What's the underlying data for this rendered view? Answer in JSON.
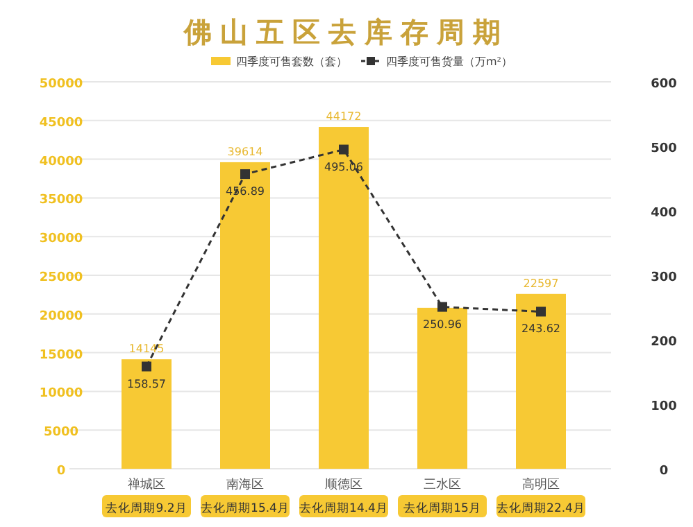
{
  "chart_data": {
    "type": "bar",
    "title": "佛山五区去库存周期",
    "categories": [
      "禅城区",
      "南海区",
      "顺德区",
      "三水区",
      "高明区"
    ],
    "series": [
      {
        "name": "四季度可售套数（套）",
        "color": "#f7c934",
        "values": [
          14145,
          39614,
          44172,
          20800,
          22597
        ],
        "value_labels": [
          "14145",
          "39614",
          "44172",
          null,
          "22597"
        ]
      },
      {
        "name": "四季度可售货量（万m²）",
        "type": "line",
        "axis": "y2",
        "color": "#333333",
        "marker": "square",
        "line_style": "dashed",
        "values": [
          158.57,
          456.89,
          495.06,
          250.96,
          243.62
        ],
        "value_labels": [
          "158.57",
          "456.89",
          "495.06",
          "250.96",
          "243.62"
        ]
      }
    ],
    "ylim": [
      0,
      50000
    ],
    "yticks": [
      0,
      5000,
      10000,
      15000,
      20000,
      25000,
      30000,
      35000,
      40000,
      45000,
      50000
    ],
    "y2lim": [
      0,
      600
    ],
    "y2ticks": [
      0,
      100,
      200,
      300,
      400,
      500,
      600
    ],
    "grid": "y",
    "legend": "top",
    "annotations": [
      "去化周期9.2月",
      "去化周期15.4月",
      "去化周期14.4月",
      "去化周期15月",
      "去化周期22.4月"
    ]
  }
}
